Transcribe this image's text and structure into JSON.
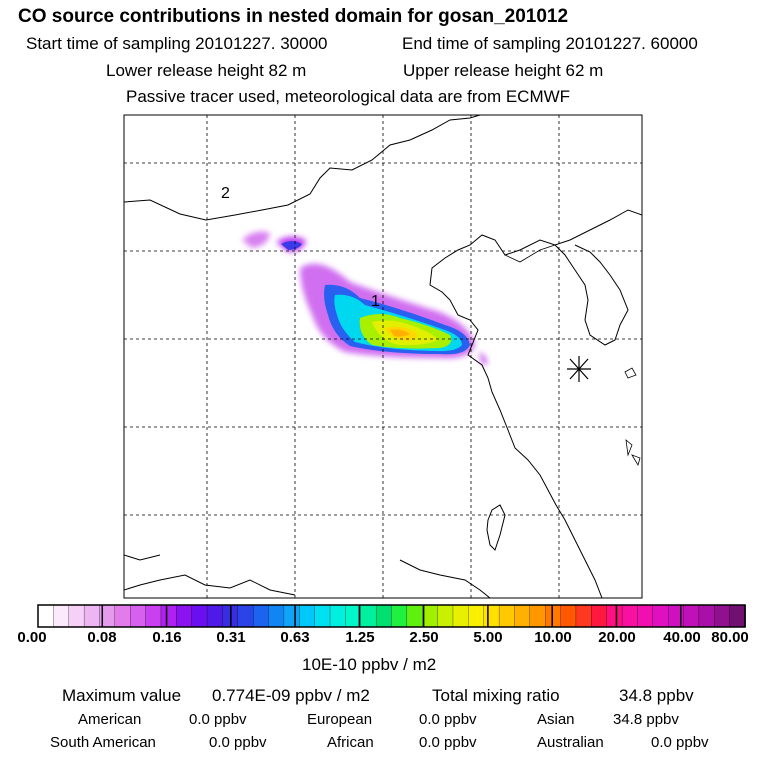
{
  "header": {
    "title": "CO  source contributions in nested domain for gosan_201012",
    "start_label": "Start time of sampling 20101227. 30000",
    "end_label": "End time of sampling 20101227. 60000",
    "lower_label": "Lower release height   82 m",
    "upper_label": "Upper release height   62 m",
    "tracer_label": "Passive tracer used, meteorological data are from ECMWF"
  },
  "map": {
    "region_label_1": "1",
    "region_label_2": "2",
    "receptor_marker": "asterisk-icon"
  },
  "colorbar": {
    "unit": "10E-10 ppbv / m2",
    "ticks": [
      "0.00",
      "0.08",
      "0.16",
      "0.31",
      "0.63",
      "1.25",
      "2.50",
      "5.00",
      "10.00",
      "20.00",
      "40.00",
      "80.00"
    ],
    "colors": [
      "#ffffff",
      "#fbeafb",
      "#f5d0f7",
      "#eeb5f3",
      "#e59aee",
      "#e17cea",
      "#d760ee",
      "#c940f0",
      "#b020f0",
      "#8a14f0",
      "#6a10f0",
      "#4d1ae8",
      "#3a2ce0",
      "#2a44e8",
      "#1c64f0",
      "#1086f4",
      "#10a4f8",
      "#00c8f8",
      "#00e0f0",
      "#00f0e0",
      "#00f8c8",
      "#00f0a0",
      "#00e070",
      "#20f040",
      "#60f010",
      "#a0f000",
      "#c8f000",
      "#e8f000",
      "#f8f000",
      "#ffe000",
      "#ffc800",
      "#ffb000",
      "#ff9800",
      "#ff7800",
      "#ff5800",
      "#ff3820",
      "#ff1840",
      "#ff1080",
      "#f810a0",
      "#f010b0",
      "#e010c0",
      "#d010c0",
      "#c010b8",
      "#a810a8",
      "#901090",
      "#701070"
    ]
  },
  "footer": {
    "max_label": "Maximum value",
    "max_value": "0.774E-09 ppbv / m2",
    "total_label": "Total mixing ratio",
    "total_value": "34.8 ppbv",
    "american_label": "American",
    "american_value": "0.0 ppbv",
    "european_label": "European",
    "european_value": "0.0 ppbv",
    "asian_label": "Asian",
    "asian_value": "34.8 ppbv",
    "south_american_label": "South American",
    "south_american_value": "0.0 ppbv",
    "african_label": "African",
    "african_value": "0.0 ppbv",
    "australian_label": "Australian",
    "australian_value": "0.0 ppbv"
  }
}
